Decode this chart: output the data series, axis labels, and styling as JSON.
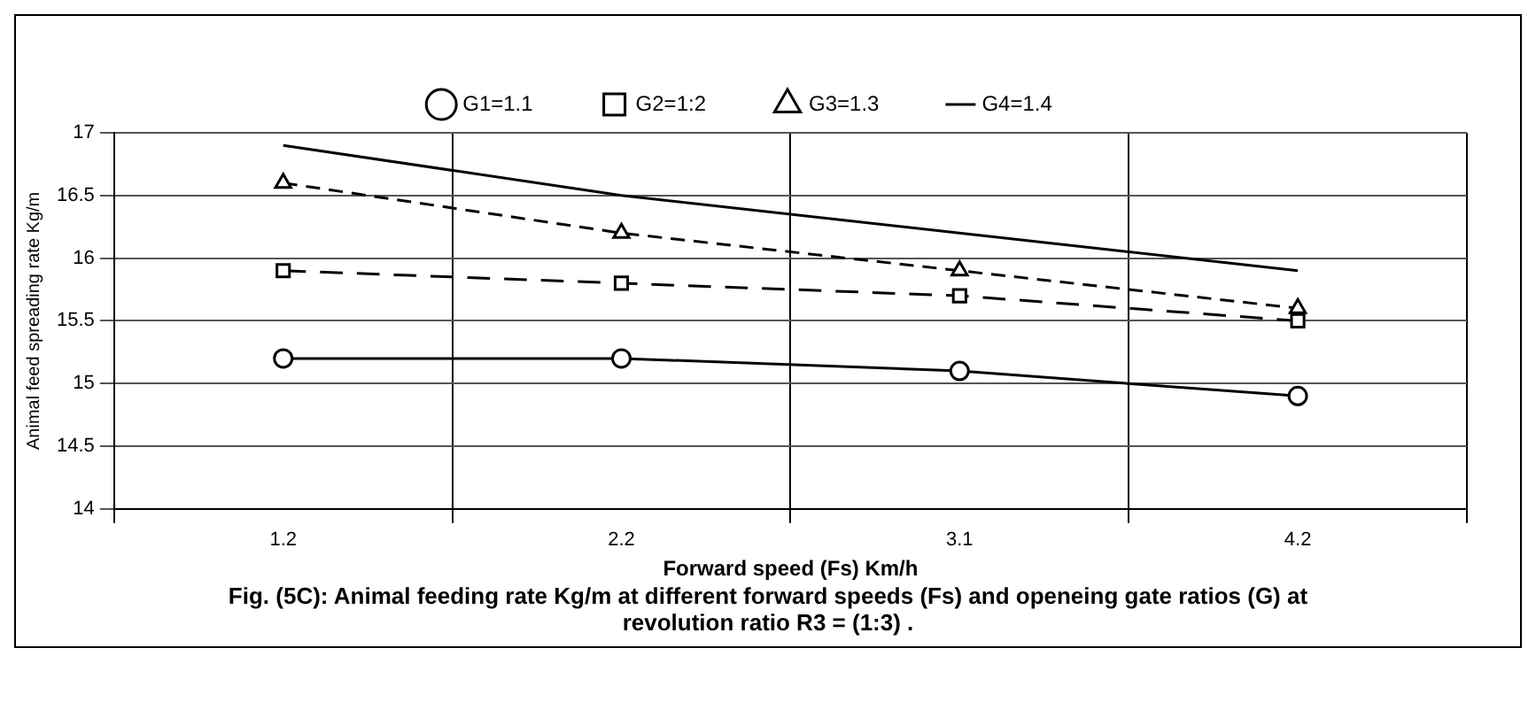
{
  "chart_data": {
    "type": "line",
    "categories": [
      "1.2",
      "2.2",
      "3.1",
      "4.2"
    ],
    "series": [
      {
        "name": "G1=1.1",
        "color": "#000000",
        "values": [
          15.2,
          15.2,
          15.1,
          14.9
        ],
        "marker": "circle",
        "line_style": "solid"
      },
      {
        "name": "G2=1:2",
        "color": "#000000",
        "values": [
          15.9,
          15.8,
          15.7,
          15.5
        ],
        "marker": "square",
        "line_style": "dashed"
      },
      {
        "name": "G3=1.3",
        "color": "#000000",
        "values": [
          16.6,
          16.2,
          15.9,
          15.6
        ],
        "marker": "triangle",
        "line_style": "dashed"
      },
      {
        "name": "G4=1.4",
        "color": "#000000",
        "values": [
          16.9,
          16.5,
          16.2,
          15.9
        ],
        "marker": "none",
        "line_style": "solid"
      }
    ],
    "xlabel": "Forward speed (Fs) Km/h",
    "ylabel": "Animal feed spreading rate Kg/m",
    "ylim": [
      14,
      17
    ],
    "yticks": [
      14,
      14.5,
      15,
      15.5,
      16,
      16.5,
      17
    ],
    "grid": true,
    "legend": "top",
    "annotations": [
      "Fig. (5C): Animal feeding rate Kg/m at different forward speeds (Fs) and openeing gate ratios (G) at revolution ratio R3 = (1:3) ."
    ]
  }
}
